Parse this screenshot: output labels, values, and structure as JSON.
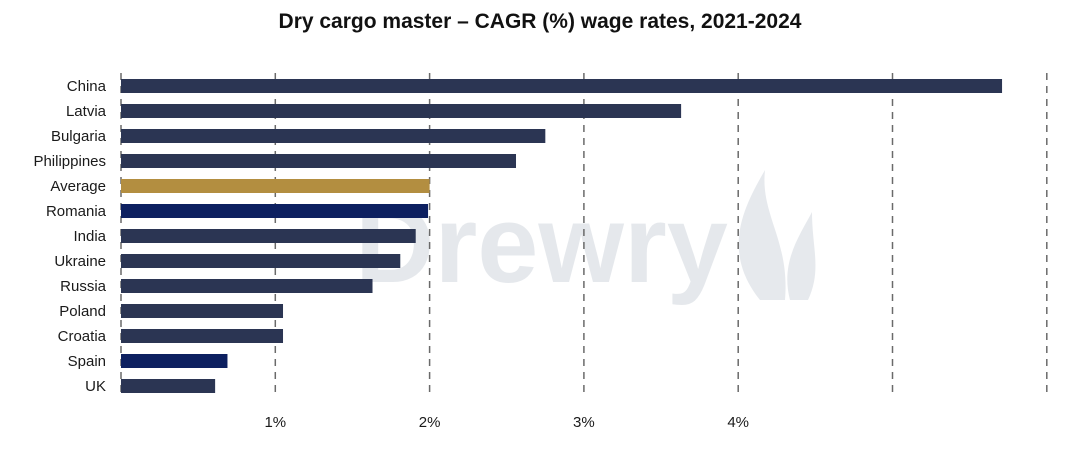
{
  "chart_data": {
    "type": "bar",
    "orientation": "horizontal",
    "title": "Dry cargo master – CAGR (%) wage rates, 2021-2024",
    "xlabel": "",
    "ylabel": "",
    "categories": [
      "China",
      "Latvia",
      "Bulgaria",
      "Philippines",
      "Average",
      "Romania",
      "India",
      "Ukraine",
      "Russia",
      "Poland",
      "Croatia",
      "Spain",
      "UK"
    ],
    "values": [
      5.71,
      3.63,
      2.75,
      2.56,
      2.0,
      1.99,
      1.91,
      1.81,
      1.63,
      1.05,
      1.05,
      0.69,
      0.61
    ],
    "bar_colors": [
      "#2b3553",
      "#2b3553",
      "#2b3553",
      "#2b3553",
      "#b38e40",
      "#0d2060",
      "#2b3553",
      "#2b3553",
      "#2b3553",
      "#2b3553",
      "#2b3553",
      "#0d2060",
      "#2b3553"
    ],
    "xlim": [
      0,
      6
    ],
    "x_ticks": [
      {
        "value": 1,
        "label": "1%"
      },
      {
        "value": 2,
        "label": "2%"
      },
      {
        "value": 3,
        "label": "3%"
      },
      {
        "value": 4,
        "label": "4%"
      }
    ],
    "gridlines": [
      1,
      2,
      3,
      4,
      5,
      6
    ],
    "grid": "vertical-dashed",
    "legend": "none"
  },
  "watermark": {
    "text": "Drewry",
    "color": "#8e9cad"
  }
}
